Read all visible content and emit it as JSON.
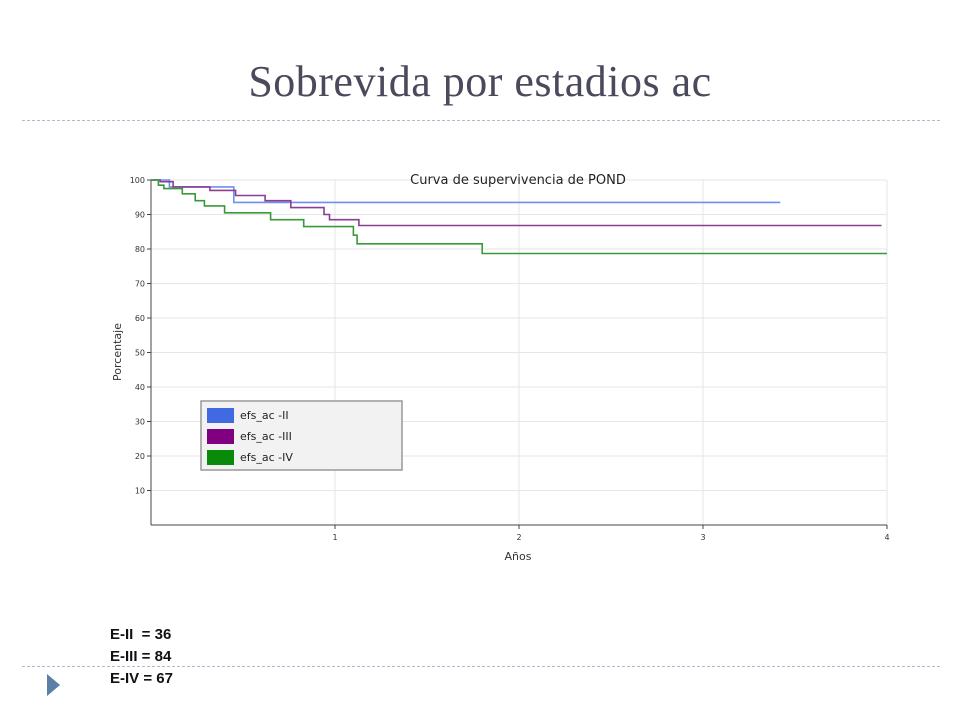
{
  "slide": {
    "title": "Sobrevida por estadios ac"
  },
  "counts": [
    "E-II  = 36",
    "E-III = 84",
    "E-IV = 67"
  ],
  "chart_data": {
    "type": "line",
    "title": "Curva de supervivencia de POND",
    "xlabel": "Años",
    "ylabel": "Porcentaje",
    "xlim": [
      0,
      4
    ],
    "ylim": [
      0,
      100
    ],
    "xticks": [
      1,
      2,
      3,
      4
    ],
    "yticks": [
      10,
      20,
      30,
      40,
      50,
      60,
      70,
      80,
      90,
      100
    ],
    "grid": true,
    "step": true,
    "legend_position": "lower-left",
    "series": [
      {
        "name": "efs_ac -II",
        "color": "#6f8fef",
        "legend_color": "#4169e1",
        "points": [
          [
            0,
            100
          ],
          [
            0.1,
            100
          ],
          [
            0.1,
            98
          ],
          [
            0.45,
            98
          ],
          [
            0.45,
            93.5
          ],
          [
            3.42,
            93.5
          ]
        ]
      },
      {
        "name": "efs_ac -III",
        "color": "#8a3e94",
        "legend_color": "#800080",
        "points": [
          [
            0,
            100
          ],
          [
            0.05,
            100
          ],
          [
            0.05,
            99.5
          ],
          [
            0.12,
            99.5
          ],
          [
            0.12,
            98
          ],
          [
            0.32,
            98
          ],
          [
            0.32,
            97
          ],
          [
            0.46,
            97
          ],
          [
            0.46,
            95.5
          ],
          [
            0.62,
            95.5
          ],
          [
            0.62,
            94
          ],
          [
            0.76,
            94
          ],
          [
            0.76,
            92
          ],
          [
            0.94,
            92
          ],
          [
            0.94,
            90
          ],
          [
            0.97,
            90
          ],
          [
            0.97,
            88.5
          ],
          [
            1.13,
            88.5
          ],
          [
            1.13,
            86.8
          ],
          [
            3.97,
            86.8
          ]
        ]
      },
      {
        "name": "efs_ac -IV",
        "color": "#3a9a3a",
        "legend_color": "#0a8a0a",
        "points": [
          [
            0,
            100
          ],
          [
            0.04,
            100
          ],
          [
            0.04,
            98.5
          ],
          [
            0.07,
            98.5
          ],
          [
            0.07,
            97.5
          ],
          [
            0.17,
            97.5
          ],
          [
            0.17,
            96
          ],
          [
            0.24,
            96
          ],
          [
            0.24,
            94
          ],
          [
            0.29,
            94
          ],
          [
            0.29,
            92.5
          ],
          [
            0.4,
            92.5
          ],
          [
            0.4,
            90.5
          ],
          [
            0.65,
            90.5
          ],
          [
            0.65,
            88.5
          ],
          [
            0.83,
            88.5
          ],
          [
            0.83,
            86.5
          ],
          [
            1.1,
            86.5
          ],
          [
            1.1,
            84
          ],
          [
            1.12,
            84
          ],
          [
            1.12,
            81.5
          ],
          [
            1.8,
            81.5
          ],
          [
            1.8,
            78.7
          ],
          [
            4.0,
            78.7
          ]
        ]
      }
    ]
  }
}
